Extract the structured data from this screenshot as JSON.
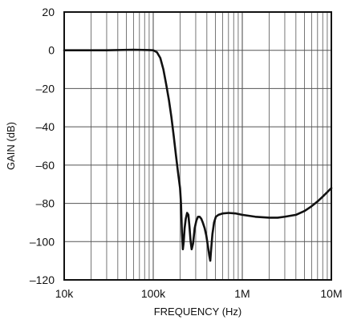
{
  "chart_data": {
    "type": "line",
    "title": "",
    "xlabel": "FREQUENCY (Hz)",
    "ylabel": "GAIN (dB)",
    "x_scale": "log",
    "xlim": [
      10000,
      10000000
    ],
    "ylim": [
      -120,
      20
    ],
    "x_ticks": [
      10000,
      100000,
      1000000,
      10000000
    ],
    "x_tick_labels": [
      "10k",
      "100k",
      "1M",
      "10M"
    ],
    "y_ticks": [
      20,
      0,
      -20,
      -40,
      -60,
      -80,
      -100,
      -120
    ],
    "y_tick_labels": [
      "20",
      "0",
      "–20",
      "–40",
      "–60",
      "–80",
      "–100",
      "–120"
    ],
    "grid": true,
    "series": [
      {
        "points": [
          [
            10000,
            0
          ],
          [
            30000,
            0
          ],
          [
            60000,
            0.3
          ],
          [
            90000,
            0.1
          ],
          [
            100000,
            0
          ],
          [
            110000,
            -1
          ],
          [
            120000,
            -4
          ],
          [
            130000,
            -10
          ],
          [
            140000,
            -18
          ],
          [
            150000,
            -26
          ],
          [
            160000,
            -35
          ],
          [
            170000,
            -45
          ],
          [
            180000,
            -55
          ],
          [
            190000,
            -64
          ],
          [
            200000,
            -72
          ],
          [
            205000,
            -80
          ],
          [
            210000,
            -95
          ],
          [
            215000,
            -104
          ],
          [
            220000,
            -100
          ],
          [
            225000,
            -93
          ],
          [
            232000,
            -88
          ],
          [
            240000,
            -85
          ],
          [
            248000,
            -86
          ],
          [
            255000,
            -92
          ],
          [
            263000,
            -100
          ],
          [
            270000,
            -104
          ],
          [
            280000,
            -101
          ],
          [
            292000,
            -93
          ],
          [
            305000,
            -89
          ],
          [
            318000,
            -87
          ],
          [
            332000,
            -87
          ],
          [
            346000,
            -88
          ],
          [
            360000,
            -90
          ],
          [
            378000,
            -93
          ],
          [
            395000,
            -97
          ],
          [
            410000,
            -102
          ],
          [
            425000,
            -107
          ],
          [
            437000,
            -110
          ],
          [
            447000,
            -104
          ],
          [
            462000,
            -96
          ],
          [
            482000,
            -90
          ],
          [
            505000,
            -87
          ],
          [
            540000,
            -86
          ],
          [
            600000,
            -85.3
          ],
          [
            700000,
            -85
          ],
          [
            850000,
            -85.3
          ],
          [
            1000000,
            -86
          ],
          [
            1400000,
            -87
          ],
          [
            2000000,
            -87.5
          ],
          [
            2500000,
            -87.5
          ],
          [
            3000000,
            -87
          ],
          [
            4000000,
            -86
          ],
          [
            5000000,
            -84
          ],
          [
            6000000,
            -81.5
          ],
          [
            7000000,
            -79
          ],
          [
            8000000,
            -76.5
          ],
          [
            10000000,
            -72
          ]
        ]
      }
    ]
  },
  "colors": {
    "line": "#111111",
    "grid": "#555555",
    "frame": "#111111"
  }
}
